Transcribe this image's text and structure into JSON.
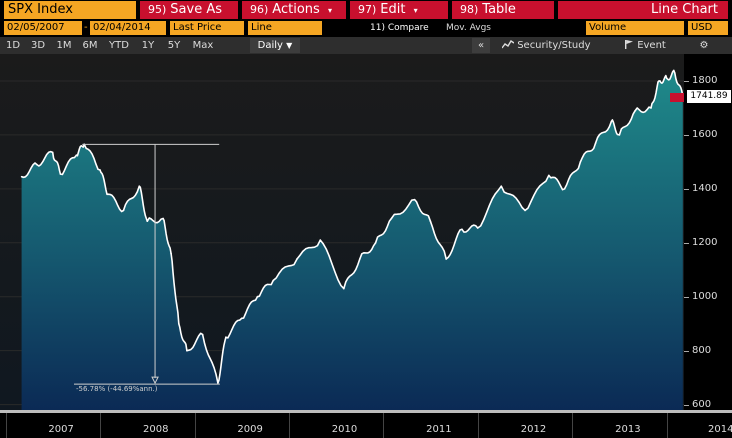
{
  "toolbar": {
    "ticker": "SPX Index",
    "save_num": "95)",
    "save_label": "Save As",
    "actions_num": "96)",
    "actions_label": "Actions",
    "edit_num": "97)",
    "edit_label": "Edit",
    "table_num": "98)",
    "table_label": "Table",
    "chart_title": "Line Chart"
  },
  "params": {
    "start_date": "02/05/2007",
    "end_date": "02/04/2014",
    "field": "Last Price",
    "style": "Line",
    "compare": "11) Compare",
    "mov_avgs": "Mov. Avgs",
    "volume": "Volume",
    "currency": "USD"
  },
  "periods": [
    "1D",
    "3D",
    "1M",
    "6M",
    "YTD",
    "1Y",
    "5Y",
    "Max"
  ],
  "period_selected": "Daily",
  "tools": {
    "collapse": "«",
    "security_study": "Security/Study",
    "event": "Event"
  },
  "axis": {
    "y_ticks": [
      "1800",
      "1600",
      "1400",
      "1200",
      "1000",
      "800",
      "600"
    ],
    "x_ticks": [
      "2007",
      "2008",
      "2009",
      "2010",
      "2011",
      "2012",
      "2013",
      "2014"
    ],
    "last_price": "1741.89"
  },
  "annotation": {
    "drawdown": "-56.78% (-44.69%ann.)"
  },
  "colors": {
    "accent_orange": "#f5a623",
    "button_red": "#c8102e",
    "line": "#ffffff",
    "fill_top": "#1f8a8a",
    "fill_bottom": "#0b2a55"
  },
  "chart_data": {
    "type": "area",
    "title": "",
    "xlabel": "",
    "ylabel": "",
    "ylim": [
      580,
      1900
    ],
    "x": [
      "2007-02",
      "2007-04",
      "2007-06",
      "2007-07",
      "2007-09",
      "2007-10",
      "2007-12",
      "2008-01",
      "2008-03",
      "2008-05",
      "2008-06",
      "2008-08",
      "2008-09",
      "2008-10",
      "2008-11",
      "2009-01",
      "2009-03",
      "2009-04",
      "2009-06",
      "2009-08",
      "2009-10",
      "2010-01",
      "2010-04",
      "2010-07",
      "2010-09",
      "2010-11",
      "2011-01",
      "2011-04",
      "2011-06",
      "2011-08",
      "2011-10",
      "2011-12",
      "2012-03",
      "2012-06",
      "2012-09",
      "2012-11",
      "2013-01",
      "2013-03",
      "2013-05",
      "2013-06",
      "2013-08",
      "2013-10",
      "2013-11",
      "2013-12",
      "2014-01",
      "2014-02"
    ],
    "series": [
      {
        "values": [
          1445,
          1490,
          1535,
          1455,
          1525,
          1565,
          1470,
          1380,
          1320,
          1410,
          1280,
          1290,
          1160,
          900,
          800,
          860,
          680,
          850,
          920,
          1000,
          1060,
          1140,
          1210,
          1030,
          1140,
          1200,
          1290,
          1360,
          1280,
          1140,
          1250,
          1255,
          1410,
          1320,
          1450,
          1400,
          1500,
          1570,
          1650,
          1600,
          1690,
          1700,
          1800,
          1810,
          1830,
          1741.89
        ]
      }
    ]
  }
}
